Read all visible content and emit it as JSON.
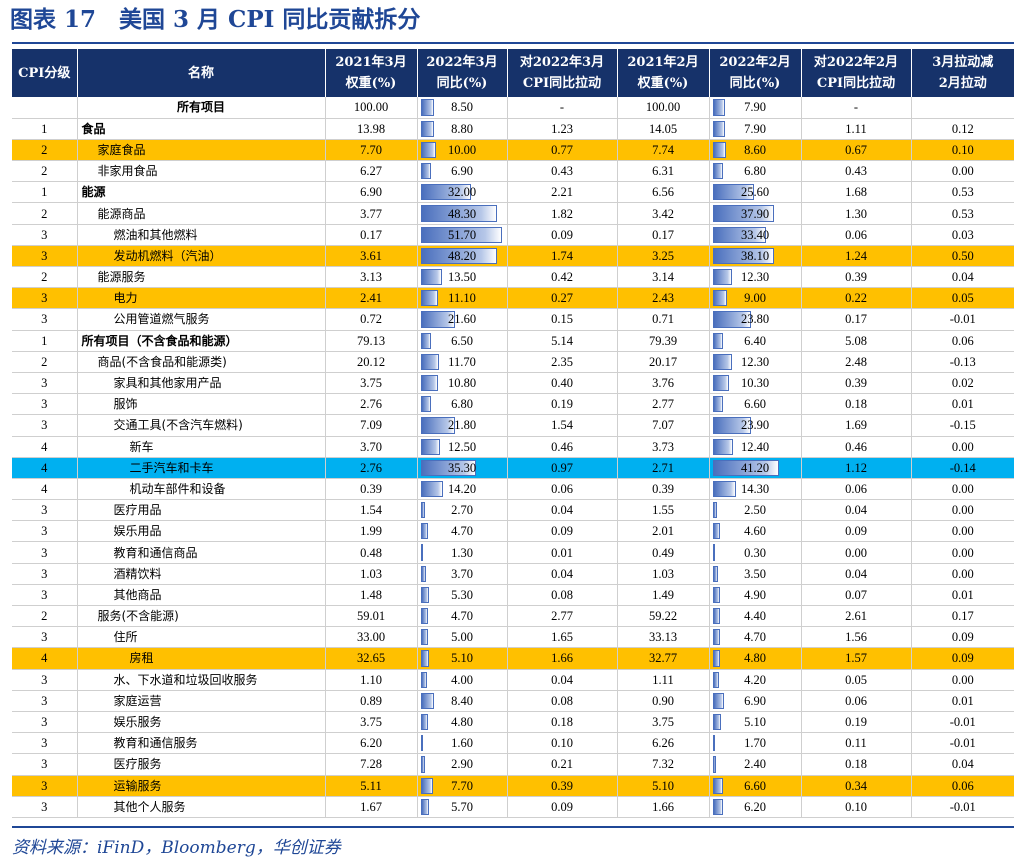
{
  "title": "图表 17　美国 3 月 CPI 同比贡献拆分",
  "source": "资料来源：iFinD，Bloomberg，华创证券",
  "colors": {
    "header_bg": "#16326a",
    "title_blue": "#1f4796",
    "highlight_orange": "#ffc000",
    "highlight_blue": "#00b0f0",
    "bar": "#4a6fbd"
  },
  "headers": [
    {
      "l1": "CPI分级",
      "l2": ""
    },
    {
      "l1": "名称",
      "l2": ""
    },
    {
      "l1": "2021年3月",
      "l2": "权重(%)"
    },
    {
      "l1": "2022年3月",
      "l2": "同比(%)"
    },
    {
      "l1": "对2022年3月",
      "l2": "CPI同比拉动"
    },
    {
      "l1": "2021年2月",
      "l2": "权重(%)"
    },
    {
      "l1": "2022年2月",
      "l2": "同比(%)"
    },
    {
      "l1": "对2022年2月",
      "l2": "CPI同比拉动"
    },
    {
      "l1": "3月拉动减",
      "l2": "2月拉动"
    }
  ],
  "rows": [
    {
      "level": "",
      "name": "所有项目",
      "indent": 0,
      "style": "center",
      "hl": "",
      "w3": "100.00",
      "y3": "8.50",
      "c3": "-",
      "w2": "100.00",
      "y2": "7.90",
      "c2": "-",
      "d": ""
    },
    {
      "level": "1",
      "name": "食品",
      "indent": 0,
      "style": "bold",
      "hl": "",
      "w3": "13.98",
      "y3": "8.80",
      "c3": "1.23",
      "w2": "14.05",
      "y2": "7.90",
      "c2": "1.11",
      "d": "0.12"
    },
    {
      "level": "2",
      "name": "家庭食品",
      "indent": 1,
      "style": "",
      "hl": "orange",
      "w3": "7.70",
      "y3": "10.00",
      "c3": "0.77",
      "w2": "7.74",
      "y2": "8.60",
      "c2": "0.67",
      "d": "0.10"
    },
    {
      "level": "2",
      "name": "非家用食品",
      "indent": 1,
      "style": "",
      "hl": "",
      "w3": "6.27",
      "y3": "6.90",
      "c3": "0.43",
      "w2": "6.31",
      "y2": "6.80",
      "c2": "0.43",
      "d": "0.00"
    },
    {
      "level": "1",
      "name": "能源",
      "indent": 0,
      "style": "bold",
      "hl": "",
      "w3": "6.90",
      "y3": "32.00",
      "c3": "2.21",
      "w2": "6.56",
      "y2": "25.60",
      "c2": "1.68",
      "d": "0.53"
    },
    {
      "level": "2",
      "name": "能源商品",
      "indent": 1,
      "style": "",
      "hl": "",
      "w3": "3.77",
      "y3": "48.30",
      "c3": "1.82",
      "w2": "3.42",
      "y2": "37.90",
      "c2": "1.30",
      "d": "0.53"
    },
    {
      "level": "3",
      "name": "燃油和其他燃料",
      "indent": 2,
      "style": "",
      "hl": "",
      "w3": "0.17",
      "y3": "51.70",
      "c3": "0.09",
      "w2": "0.17",
      "y2": "33.40",
      "c2": "0.06",
      "d": "0.03"
    },
    {
      "level": "3",
      "name": "发动机燃料（汽油）",
      "indent": 2,
      "style": "",
      "hl": "orange",
      "w3": "3.61",
      "y3": "48.20",
      "c3": "1.74",
      "w2": "3.25",
      "y2": "38.10",
      "c2": "1.24",
      "d": "0.50"
    },
    {
      "level": "2",
      "name": "能源服务",
      "indent": 1,
      "style": "",
      "hl": "",
      "w3": "3.13",
      "y3": "13.50",
      "c3": "0.42",
      "w2": "3.14",
      "y2": "12.30",
      "c2": "0.39",
      "d": "0.04"
    },
    {
      "level": "3",
      "name": "电力",
      "indent": 2,
      "style": "",
      "hl": "orange",
      "w3": "2.41",
      "y3": "11.10",
      "c3": "0.27",
      "w2": "2.43",
      "y2": "9.00",
      "c2": "0.22",
      "d": "0.05"
    },
    {
      "level": "3",
      "name": "公用管道燃气服务",
      "indent": 2,
      "style": "",
      "hl": "",
      "w3": "0.72",
      "y3": "21.60",
      "c3": "0.15",
      "w2": "0.71",
      "y2": "23.80",
      "c2": "0.17",
      "d": "-0.01"
    },
    {
      "level": "1",
      "name": "所有项目（不含食品和能源）",
      "indent": 0,
      "style": "bold",
      "hl": "",
      "w3": "79.13",
      "y3": "6.50",
      "c3": "5.14",
      "w2": "79.39",
      "y2": "6.40",
      "c2": "5.08",
      "d": "0.06"
    },
    {
      "level": "2",
      "name": "商品(不含食品和能源类)",
      "indent": 1,
      "style": "",
      "hl": "",
      "w3": "20.12",
      "y3": "11.70",
      "c3": "2.35",
      "w2": "20.17",
      "y2": "12.30",
      "c2": "2.48",
      "d": "-0.13"
    },
    {
      "level": "3",
      "name": "家具和其他家用产品",
      "indent": 2,
      "style": "",
      "hl": "",
      "w3": "3.75",
      "y3": "10.80",
      "c3": "0.40",
      "w2": "3.76",
      "y2": "10.30",
      "c2": "0.39",
      "d": "0.02"
    },
    {
      "level": "3",
      "name": "服饰",
      "indent": 2,
      "style": "",
      "hl": "",
      "w3": "2.76",
      "y3": "6.80",
      "c3": "0.19",
      "w2": "2.77",
      "y2": "6.60",
      "c2": "0.18",
      "d": "0.01"
    },
    {
      "level": "3",
      "name": "交通工具(不含汽车燃料)",
      "indent": 2,
      "style": "",
      "hl": "",
      "w3": "7.09",
      "y3": "21.80",
      "c3": "1.54",
      "w2": "7.07",
      "y2": "23.90",
      "c2": "1.69",
      "d": "-0.15"
    },
    {
      "level": "4",
      "name": "新车",
      "indent": 3,
      "style": "",
      "hl": "",
      "w3": "3.70",
      "y3": "12.50",
      "c3": "0.46",
      "w2": "3.73",
      "y2": "12.40",
      "c2": "0.46",
      "d": "0.00"
    },
    {
      "level": "4",
      "name": "二手汽车和卡车",
      "indent": 3,
      "style": "",
      "hl": "blue",
      "w3": "2.76",
      "y3": "35.30",
      "c3": "0.97",
      "w2": "2.71",
      "y2": "41.20",
      "c2": "1.12",
      "d": "-0.14"
    },
    {
      "level": "4",
      "name": "机动车部件和设备",
      "indent": 3,
      "style": "",
      "hl": "",
      "w3": "0.39",
      "y3": "14.20",
      "c3": "0.06",
      "w2": "0.39",
      "y2": "14.30",
      "c2": "0.06",
      "d": "0.00"
    },
    {
      "level": "3",
      "name": "医疗用品",
      "indent": 2,
      "style": "",
      "hl": "",
      "w3": "1.54",
      "y3": "2.70",
      "c3": "0.04",
      "w2": "1.55",
      "y2": "2.50",
      "c2": "0.04",
      "d": "0.00"
    },
    {
      "level": "3",
      "name": "娱乐用品",
      "indent": 2,
      "style": "",
      "hl": "",
      "w3": "1.99",
      "y3": "4.70",
      "c3": "0.09",
      "w2": "2.01",
      "y2": "4.60",
      "c2": "0.09",
      "d": "0.00"
    },
    {
      "level": "3",
      "name": "教育和通信商品",
      "indent": 2,
      "style": "",
      "hl": "",
      "w3": "0.48",
      "y3": "1.30",
      "c3": "0.01",
      "w2": "0.49",
      "y2": "0.30",
      "c2": "0.00",
      "d": "0.00"
    },
    {
      "level": "3",
      "name": "酒精饮料",
      "indent": 2,
      "style": "",
      "hl": "",
      "w3": "1.03",
      "y3": "3.70",
      "c3": "0.04",
      "w2": "1.03",
      "y2": "3.50",
      "c2": "0.04",
      "d": "0.00"
    },
    {
      "level": "3",
      "name": "其他商品",
      "indent": 2,
      "style": "",
      "hl": "",
      "w3": "1.48",
      "y3": "5.30",
      "c3": "0.08",
      "w2": "1.49",
      "y2": "4.90",
      "c2": "0.07",
      "d": "0.01"
    },
    {
      "level": "2",
      "name": "服务(不含能源)",
      "indent": 1,
      "style": "",
      "hl": "",
      "w3": "59.01",
      "y3": "4.70",
      "c3": "2.77",
      "w2": "59.22",
      "y2": "4.40",
      "c2": "2.61",
      "d": "0.17"
    },
    {
      "level": "3",
      "name": "住所",
      "indent": 2,
      "style": "",
      "hl": "",
      "w3": "33.00",
      "y3": "5.00",
      "c3": "1.65",
      "w2": "33.13",
      "y2": "4.70",
      "c2": "1.56",
      "d": "0.09"
    },
    {
      "level": "4",
      "name": "房租",
      "indent": 3,
      "style": "",
      "hl": "orange",
      "w3": "32.65",
      "y3": "5.10",
      "c3": "1.66",
      "w2": "32.77",
      "y2": "4.80",
      "c2": "1.57",
      "d": "0.09"
    },
    {
      "level": "3",
      "name": "水、下水道和垃圾回收服务",
      "indent": 2,
      "style": "",
      "hl": "",
      "w3": "1.10",
      "y3": "4.00",
      "c3": "0.04",
      "w2": "1.11",
      "y2": "4.20",
      "c2": "0.05",
      "d": "0.00"
    },
    {
      "level": "3",
      "name": "家庭运营",
      "indent": 2,
      "style": "",
      "hl": "",
      "w3": "0.89",
      "y3": "8.40",
      "c3": "0.08",
      "w2": "0.90",
      "y2": "6.90",
      "c2": "0.06",
      "d": "0.01"
    },
    {
      "level": "3",
      "name": "娱乐服务",
      "indent": 2,
      "style": "",
      "hl": "",
      "w3": "3.75",
      "y3": "4.80",
      "c3": "0.18",
      "w2": "3.75",
      "y2": "5.10",
      "c2": "0.19",
      "d": "-0.01"
    },
    {
      "level": "3",
      "name": "教育和通信服务",
      "indent": 2,
      "style": "",
      "hl": "",
      "w3": "6.20",
      "y3": "1.60",
      "c3": "0.10",
      "w2": "6.26",
      "y2": "1.70",
      "c2": "0.11",
      "d": "-0.01"
    },
    {
      "level": "3",
      "name": "医疗服务",
      "indent": 2,
      "style": "",
      "hl": "",
      "w3": "7.28",
      "y3": "2.90",
      "c3": "0.21",
      "w2": "7.32",
      "y2": "2.40",
      "c2": "0.18",
      "d": "0.04"
    },
    {
      "level": "3",
      "name": "运输服务",
      "indent": 2,
      "style": "",
      "hl": "orange",
      "w3": "5.11",
      "y3": "7.70",
      "c3": "0.39",
      "w2": "5.10",
      "y2": "6.60",
      "c2": "0.34",
      "d": "0.06"
    },
    {
      "level": "3",
      "name": "其他个人服务",
      "indent": 2,
      "style": "",
      "hl": "",
      "w3": "1.67",
      "y3": "5.70",
      "c3": "0.09",
      "w2": "1.66",
      "y2": "6.20",
      "c2": "0.10",
      "d": "-0.01"
    }
  ]
}
